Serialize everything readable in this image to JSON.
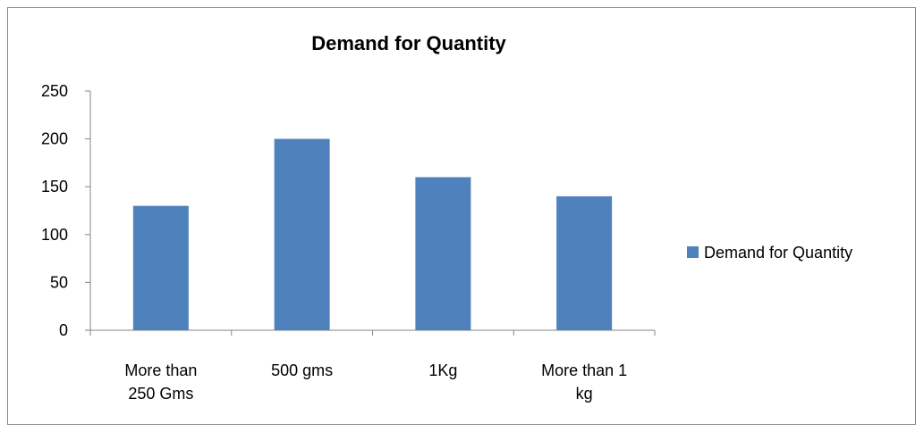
{
  "chart_data": {
    "type": "bar",
    "title": "Demand for Quantity",
    "categories": [
      [
        "More than",
        "250 Gms"
      ],
      [
        "500 gms"
      ],
      [
        "1Kg"
      ],
      [
        "More than 1",
        "kg"
      ]
    ],
    "series": [
      {
        "name": "Demand for Quantity",
        "values": [
          130,
          200,
          160,
          140
        ],
        "color": "#4F81BD"
      }
    ],
    "xlabel": "",
    "ylabel": "",
    "ylim": [
      0,
      250
    ],
    "yticks": [
      0,
      50,
      100,
      150,
      200,
      250
    ],
    "grid": false,
    "legend_position": "right"
  }
}
